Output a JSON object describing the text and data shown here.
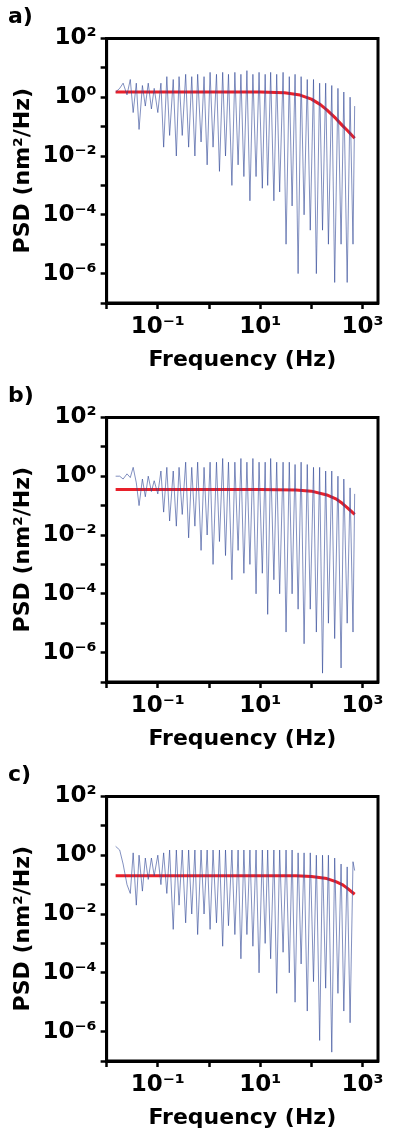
{
  "chart_data": [
    {
      "type": "line",
      "title": "a)",
      "xlabel": "Frequency (Hz)",
      "ylabel": "PSD (nm²/Hz)",
      "log": "xy",
      "xlim": [
        0.01,
        2000
      ],
      "ylim": [
        1e-07,
        100
      ],
      "xticks": [
        {
          "value": 0.01,
          "label": null
        },
        {
          "value": 0.1,
          "label": "10⁻¹"
        },
        {
          "value": 1,
          "label": null
        },
        {
          "value": 10,
          "label": "10¹"
        },
        {
          "value": 100,
          "label": null
        },
        {
          "value": 1000,
          "label": "10³"
        }
      ],
      "yticks": [
        {
          "value": 1e-07,
          "label": null
        },
        {
          "value": 1e-06,
          "label": "10⁻⁶"
        },
        {
          "value": 1e-05,
          "label": null
        },
        {
          "value": 0.0001,
          "label": "10⁻⁴"
        },
        {
          "value": 0.001,
          "label": null
        },
        {
          "value": 0.01,
          "label": "10⁻²"
        },
        {
          "value": 0.1,
          "label": null
        },
        {
          "value": 1,
          "label": "10⁰"
        },
        {
          "value": 10,
          "label": null
        },
        {
          "value": 100,
          "label": "10²"
        }
      ],
      "series": [
        {
          "color": "#2e4596",
          "x": [
            0.015,
            0.018,
            0.021,
            0.025,
            0.029,
            0.033,
            0.038,
            0.043,
            0.05,
            0.057,
            0.065,
            0.075,
            0.085,
            0.1,
            0.115,
            0.13,
            0.15,
            0.17,
            0.2,
            0.23,
            0.26,
            0.3,
            0.35,
            0.4,
            0.46,
            0.53,
            0.6,
            0.7,
            0.8,
            0.92,
            1.05,
            1.2,
            1.4,
            1.6,
            1.85,
            2.1,
            2.4,
            2.8,
            3.2,
            3.7,
            4.2,
            4.8,
            5.5,
            6.3,
            7.2,
            8.3,
            9.5,
            11,
            12.5,
            14,
            16,
            18.5,
            21,
            24,
            28,
            32,
            37,
            42,
            48,
            55,
            63,
            72,
            83,
            95,
            110,
            125,
            145,
            165,
            190,
            215,
            250,
            285,
            330,
            380,
            430,
            500,
            570,
            650,
            700
          ],
          "values": [
            1.5,
            2,
            3,
            1.2,
            4,
            0.3,
            3,
            0.08,
            2.5,
            0.5,
            3,
            0.4,
            2,
            0.3,
            3,
            0.02,
            5,
            0.05,
            4,
            0.01,
            5,
            0.05,
            6,
            0.02,
            5,
            0.01,
            6,
            0.03,
            5,
            0.005,
            7,
            0.02,
            6,
            0.003,
            7,
            0.01,
            6,
            0.001,
            7,
            0.005,
            6,
            0.002,
            8,
            0.0003,
            6,
            0.002,
            7,
            0.0008,
            6,
            0.001,
            7,
            0.0003,
            6,
            0.0006,
            7,
            1e-05,
            5,
            0.0002,
            6,
            1e-06,
            5,
            0.0001,
            4,
            3e-05,
            4,
            1e-06,
            3,
            3e-05,
            3,
            1e-05,
            2.5,
            5e-07,
            2,
            1e-05,
            1.5,
            5e-07,
            1,
            1e-05,
            0.5
          ]
        },
        {
          "color": "#e8202a",
          "x": [
            0.015,
            1,
            10,
            30,
            60,
            100,
            150,
            200,
            300,
            400,
            500,
            700
          ],
          "values": [
            1.5,
            1.5,
            1.5,
            1.41,
            1.18,
            0.86,
            0.56,
            0.37,
            0.19,
            0.11,
            0.075,
            0.04
          ]
        }
      ]
    },
    {
      "type": "line",
      "title": "b)",
      "xlabel": "Frequency (Hz)",
      "ylabel": "PSD (nm²/Hz)",
      "log": "xy",
      "xlim": [
        0.01,
        2000
      ],
      "ylim": [
        1e-07,
        100
      ],
      "xticks": [
        {
          "value": 0.01,
          "label": null
        },
        {
          "value": 0.1,
          "label": "10⁻¹"
        },
        {
          "value": 1,
          "label": null
        },
        {
          "value": 10,
          "label": "10¹"
        },
        {
          "value": 100,
          "label": null
        },
        {
          "value": 1000,
          "label": "10³"
        }
      ],
      "yticks": [
        {
          "value": 1e-07,
          "label": null
        },
        {
          "value": 1e-06,
          "label": "10⁻⁶"
        },
        {
          "value": 1e-05,
          "label": null
        },
        {
          "value": 0.0001,
          "label": "10⁻⁴"
        },
        {
          "value": 0.001,
          "label": null
        },
        {
          "value": 0.01,
          "label": "10⁻²"
        },
        {
          "value": 0.1,
          "label": null
        },
        {
          "value": 1,
          "label": "10⁰"
        },
        {
          "value": 10,
          "label": null
        },
        {
          "value": 100,
          "label": "10²"
        }
      ],
      "series": [
        {
          "color": "#2e4596",
          "x": [
            0.015,
            0.018,
            0.021,
            0.025,
            0.029,
            0.033,
            0.038,
            0.043,
            0.05,
            0.057,
            0.065,
            0.075,
            0.085,
            0.1,
            0.115,
            0.13,
            0.15,
            0.17,
            0.2,
            0.23,
            0.26,
            0.3,
            0.35,
            0.4,
            0.46,
            0.53,
            0.6,
            0.7,
            0.8,
            0.92,
            1.05,
            1.2,
            1.4,
            1.6,
            1.85,
            2.1,
            2.4,
            2.8,
            3.2,
            3.7,
            4.2,
            4.8,
            5.5,
            6.3,
            7.2,
            8.3,
            9.5,
            11,
            12.5,
            14,
            16,
            18.5,
            21,
            24,
            28,
            32,
            37,
            42,
            48,
            55,
            63,
            72,
            83,
            95,
            110,
            125,
            145,
            165,
            190,
            215,
            250,
            285,
            330,
            380,
            430,
            500,
            570,
            650,
            700
          ],
          "values": [
            1,
            1,
            0.8,
            1.2,
            0.9,
            2,
            0.6,
            0.1,
            0.8,
            0.2,
            1,
            0.3,
            0.7,
            0.25,
            1.5,
            0.06,
            2,
            0.03,
            1.5,
            0.02,
            2,
            0.05,
            3,
            0.008,
            2,
            0.02,
            3,
            0.003,
            2,
            0.01,
            3,
            0.001,
            3,
            0.006,
            4,
            0.002,
            3,
            0.0003,
            3,
            0.003,
            4,
            0.0005,
            3,
            0.001,
            4,
            0.0001,
            3,
            0.0005,
            3,
            2e-05,
            4,
            0.0003,
            3,
            0.0001,
            3,
            5e-06,
            3,
            0.0001,
            2.5,
            3e-05,
            3,
            2e-06,
            2.5,
            3e-05,
            2,
            5e-06,
            2,
            2e-07,
            1.5,
            1e-05,
            1.5,
            3e-06,
            1,
            3e-07,
            0.8,
            1e-05,
            0.4,
            5e-06,
            0.25
          ]
        },
        {
          "color": "#e8202a",
          "x": [
            0.015,
            1,
            10,
            50,
            100,
            200,
            300,
            400,
            500,
            700
          ],
          "values": [
            0.35,
            0.35,
            0.35,
            0.34,
            0.31,
            0.23,
            0.17,
            0.12,
            0.086,
            0.05
          ]
        }
      ]
    },
    {
      "type": "line",
      "title": "c)",
      "xlabel": "Frequency (Hz)",
      "ylabel": "PSD (nm²/Hz)",
      "log": "xy",
      "xlim": [
        0.01,
        2000
      ],
      "ylim": [
        1e-07,
        100
      ],
      "xticks": [
        {
          "value": 0.01,
          "label": null
        },
        {
          "value": 0.1,
          "label": "10⁻¹"
        },
        {
          "value": 1,
          "label": null
        },
        {
          "value": 10,
          "label": "10¹"
        },
        {
          "value": 100,
          "label": null
        },
        {
          "value": 1000,
          "label": "10³"
        }
      ],
      "yticks": [
        {
          "value": 1e-07,
          "label": null
        },
        {
          "value": 1e-06,
          "label": "10⁻⁶"
        },
        {
          "value": 1e-05,
          "label": null
        },
        {
          "value": 0.0001,
          "label": "10⁻⁴"
        },
        {
          "value": 0.001,
          "label": null
        },
        {
          "value": 0.01,
          "label": "10⁻²"
        },
        {
          "value": 0.1,
          "label": null
        },
        {
          "value": 1,
          "label": "10⁰"
        },
        {
          "value": 10,
          "label": null
        },
        {
          "value": 100,
          "label": "10²"
        }
      ],
      "series": [
        {
          "color": "#2e4596",
          "x": [
            0.015,
            0.018,
            0.021,
            0.025,
            0.029,
            0.033,
            0.038,
            0.043,
            0.05,
            0.057,
            0.065,
            0.075,
            0.085,
            0.1,
            0.115,
            0.13,
            0.15,
            0.17,
            0.2,
            0.23,
            0.26,
            0.3,
            0.35,
            0.4,
            0.46,
            0.53,
            0.6,
            0.7,
            0.8,
            0.92,
            1.05,
            1.2,
            1.4,
            1.6,
            1.85,
            2.1,
            2.4,
            2.8,
            3.2,
            3.7,
            4.2,
            4.8,
            5.5,
            6.3,
            7.2,
            8.3,
            9.5,
            11,
            12.5,
            14,
            16,
            18.5,
            21,
            24,
            28,
            32,
            37,
            42,
            48,
            55,
            63,
            72,
            83,
            95,
            110,
            125,
            145,
            165,
            190,
            215,
            250,
            285,
            330,
            380,
            430,
            500,
            570,
            650,
            700
          ],
          "values": [
            2,
            1.5,
            0.5,
            0.1,
            0.05,
            1.2,
            0.02,
            1,
            0.06,
            0.8,
            0.15,
            0.8,
            0.2,
            1,
            0.1,
            1.2,
            0.05,
            1.5,
            0.003,
            1.5,
            0.02,
            1.5,
            0.005,
            1.5,
            0.01,
            1.5,
            0.002,
            1.5,
            0.01,
            1.5,
            0.003,
            1.5,
            0.005,
            1.5,
            0.0008,
            1.5,
            0.004,
            1.5,
            0.002,
            1.5,
            0.0003,
            1.5,
            0.002,
            1.5,
            0.0008,
            1.5,
            0.0001,
            1.5,
            0.001,
            1.5,
            0.0003,
            1.5,
            2e-05,
            1.5,
            0.0005,
            1.5,
            0.0001,
            1.5,
            1e-05,
            1.2,
            0.0002,
            1.2,
            5e-06,
            1.2,
            5e-05,
            1,
            5e-07,
            1,
            3e-05,
            1,
            2e-07,
            0.8,
            2e-05,
            0.5,
            5e-06,
            0.4,
            2e-06,
            0.6,
            0.3
          ]
        },
        {
          "color": "#e8202a",
          "x": [
            0.015,
            1,
            10,
            50,
            100,
            200,
            300,
            400,
            500,
            700
          ],
          "values": [
            0.2,
            0.2,
            0.2,
            0.2,
            0.19,
            0.16,
            0.126,
            0.1,
            0.076,
            0.047
          ]
        }
      ]
    }
  ]
}
